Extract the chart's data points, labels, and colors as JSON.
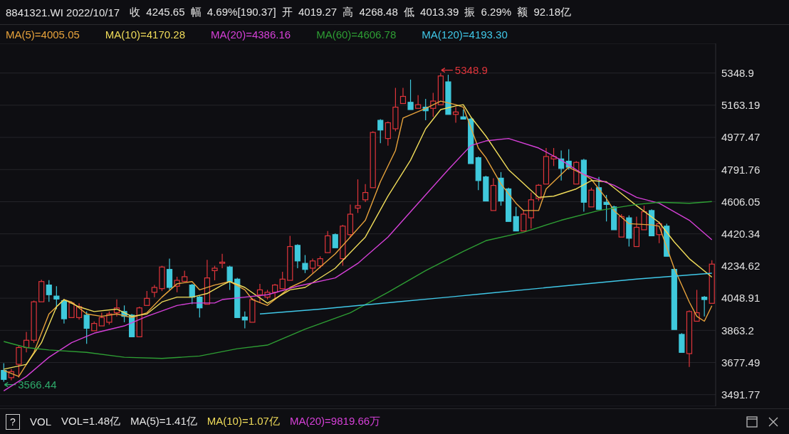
{
  "chart_data": {
    "type": "candlestick",
    "title": "8841321.WI 2022/10/17",
    "subtitle": "收 4245.65 幅 4.69%[190.37] 开 4019.27 高 4268.48 低 4013.39 振 6.29% 额 92.18亿",
    "categories": [
      null,
      null,
      null,
      null,
      null,
      null,
      null,
      null,
      null,
      null,
      null,
      null,
      null,
      null,
      null,
      null,
      null,
      null,
      null,
      null,
      null,
      null,
      null,
      null,
      null,
      null,
      null,
      null,
      null,
      null,
      null,
      null,
      null,
      null,
      null,
      null,
      null,
      null,
      null,
      null,
      null,
      null,
      null,
      null,
      null,
      null,
      null,
      null,
      null,
      null,
      null,
      null,
      null,
      null,
      null,
      null,
      null,
      null,
      null,
      null,
      null,
      null,
      null,
      null,
      null,
      null,
      null,
      null,
      null,
      null,
      null,
      null,
      null,
      null,
      null,
      null,
      null,
      null,
      null,
      null,
      null,
      null,
      null,
      null,
      null,
      null,
      null,
      null,
      null,
      null,
      null,
      null,
      null,
      null,
      null
    ],
    "ohlc": [
      [
        3632,
        3674,
        3566.44,
        3580
      ],
      [
        3590,
        3640,
        3575,
        3625
      ],
      [
        3667,
        3778,
        3590,
        3764
      ],
      [
        3764,
        3854,
        3736,
        3806
      ],
      [
        3806,
        4035,
        3792,
        4028
      ],
      [
        4028,
        4155,
        4021,
        4145
      ],
      [
        4125,
        4153,
        4028,
        4069
      ],
      [
        4061,
        4118,
        3986,
        4044
      ],
      [
        4035,
        4042,
        3903,
        3930
      ],
      [
        3937,
        4028,
        3930,
        4021
      ],
      [
        3937,
        4020,
        3925,
        4000
      ],
      [
        3951,
        3972,
        3785,
        3875
      ],
      [
        3861,
        3915,
        3861,
        3903
      ],
      [
        3889,
        3965,
        3882,
        3937
      ],
      [
        3910,
        3972,
        3896,
        3958
      ],
      [
        3965,
        4042,
        3944,
        3993
      ],
      [
        3972,
        4007,
        3910,
        3944
      ],
      [
        3951,
        3958,
        3819,
        3826
      ],
      [
        3826,
        4000,
        3819,
        3993
      ],
      [
        4007,
        4090,
        4000,
        4048
      ],
      [
        4083,
        4125,
        4055,
        4111
      ],
      [
        4104,
        4236,
        4090,
        4229
      ],
      [
        4215,
        4277,
        4097,
        4111
      ],
      [
        4118,
        4173,
        4083,
        4152
      ],
      [
        4146,
        4208,
        4139,
        4173
      ],
      [
        4125,
        4132,
        4014,
        4055
      ],
      [
        4055,
        4062,
        3937,
        3993
      ],
      [
        4014,
        4270,
        4007,
        4166
      ],
      [
        4208,
        4236,
        4152,
        4222
      ],
      [
        4250,
        4305,
        4222,
        4257
      ],
      [
        4229,
        4236,
        4097,
        4146
      ],
      [
        4159,
        4166,
        3930,
        3937
      ],
      [
        3940,
        3972,
        3875,
        3923
      ],
      [
        3910,
        4050,
        3903,
        4041
      ],
      [
        4069,
        4132,
        4021,
        4097
      ],
      [
        4055,
        4097,
        4042,
        4083
      ],
      [
        4083,
        4132,
        4042,
        4125
      ],
      [
        4104,
        4201,
        4097,
        4159
      ],
      [
        4152,
        4409,
        4145,
        4347
      ],
      [
        4354,
        4361,
        4222,
        4264
      ],
      [
        4250,
        4298,
        4194,
        4215
      ],
      [
        4222,
        4277,
        4194,
        4264
      ],
      [
        4236,
        4291,
        4222,
        4277
      ],
      [
        4312,
        4437,
        4305,
        4409
      ],
      [
        4416,
        4423,
        4333,
        4340
      ],
      [
        4277,
        4472,
        4236,
        4465
      ],
      [
        4416,
        4590,
        4402,
        4534
      ],
      [
        4569,
        4735,
        4541,
        4583
      ],
      [
        4617,
        4708,
        4604,
        4659
      ],
      [
        4687,
        5013,
        4680,
        5006
      ],
      [
        5076,
        5083,
        4944,
        5020
      ],
      [
        4971,
        5069,
        4930,
        5062
      ],
      [
        5027,
        5263,
        5013,
        5152
      ],
      [
        5173,
        5263,
        5166,
        5214
      ],
      [
        5180,
        5311,
        5131,
        5138
      ],
      [
        5145,
        5221,
        5138,
        5166
      ],
      [
        5152,
        5200,
        5076,
        5131
      ],
      [
        5145,
        5235,
        5096,
        5187
      ],
      [
        5166,
        5348.9,
        5166,
        5332
      ],
      [
        5298,
        5339,
        5110,
        5110
      ],
      [
        5110,
        5152,
        5062,
        5124
      ],
      [
        5096,
        5138,
        5076,
        5083
      ],
      [
        5083,
        5090,
        4819,
        4826
      ],
      [
        4860,
        4867,
        4673,
        4728
      ],
      [
        4749,
        4756,
        4604,
        4610
      ],
      [
        4555,
        4742,
        4548,
        4700
      ],
      [
        4742,
        4777,
        4583,
        4610
      ],
      [
        4680,
        4687,
        4485,
        4492
      ],
      [
        4520,
        4576,
        4430,
        4437
      ],
      [
        4437,
        4555,
        4430,
        4534
      ],
      [
        4513,
        4659,
        4451,
        4617
      ],
      [
        4624,
        4708,
        4610,
        4701
      ],
      [
        4708,
        4916,
        4701,
        4867
      ],
      [
        4853,
        4916,
        4812,
        4867
      ],
      [
        4853,
        4902,
        4728,
        4798
      ],
      [
        4840,
        4909,
        4791,
        4805
      ],
      [
        4708,
        4840,
        4701,
        4833
      ],
      [
        4846,
        4853,
        4548,
        4603
      ],
      [
        4576,
        4687,
        4569,
        4673
      ],
      [
        4687,
        4749,
        4555,
        4562
      ],
      [
        4603,
        4645,
        4492,
        4590
      ],
      [
        4576,
        4583,
        4437,
        4444
      ],
      [
        4402,
        4534,
        4395,
        4520
      ],
      [
        4513,
        4527,
        4347,
        4395
      ],
      [
        4347,
        4520,
        4340,
        4458
      ],
      [
        4444,
        4583,
        4437,
        4548
      ],
      [
        4555,
        4562,
        4402,
        4409
      ],
      [
        4416,
        4492,
        4367,
        4479
      ],
      [
        4465,
        4479,
        4284,
        4291
      ],
      [
        4215,
        4222,
        3861,
        3868
      ],
      [
        3840,
        3847,
        3729,
        3736
      ],
      [
        3729,
        3979,
        3652,
        3972
      ],
      [
        3916,
        4097,
        3909,
        3965
      ],
      [
        4055,
        4062,
        3944,
        4041
      ],
      [
        4019.27,
        4268.48,
        4013.39,
        4245.65
      ]
    ],
    "colors": [
      "#3fc9dc",
      "#e0353b",
      "#e0353b",
      "#e0353b",
      "#e0353b",
      "#e0353b",
      "#3fc9dc",
      "#3fc9dc",
      "#3fc9dc",
      "#e0353b",
      "#e0353b",
      "#3fc9dc",
      "#e0353b",
      "#e0353b",
      "#e0353b",
      "#e0353b",
      "#3fc9dc",
      "#3fc9dc",
      "#e0353b",
      "#e0353b",
      "#e0353b",
      "#e0353b",
      "#3fc9dc",
      "#e0353b",
      "#e0353b",
      "#3fc9dc",
      "#3fc9dc",
      "#e0353b",
      "#e0353b",
      "#e0353b",
      "#3fc9dc",
      "#3fc9dc",
      "#3fc9dc",
      "#e0353b",
      "#e0353b",
      "#e0353b",
      "#e0353b",
      "#e0353b",
      "#e0353b",
      "#3fc9dc",
      "#3fc9dc",
      "#e0353b",
      "#e0353b",
      "#e0353b",
      "#3fc9dc",
      "#e0353b",
      "#e0353b",
      "#e0353b",
      "#e0353b",
      "#e0353b",
      "#3fc9dc",
      "#e0353b",
      "#e0353b",
      "#e0353b",
      "#3fc9dc",
      "#e0353b",
      "#3fc9dc",
      "#e0353b",
      "#e0353b",
      "#3fc9dc",
      "#e0353b",
      "#3fc9dc",
      "#3fc9dc",
      "#3fc9dc",
      "#3fc9dc",
      "#e0353b",
      "#3fc9dc",
      "#3fc9dc",
      "#3fc9dc",
      "#e0353b",
      "#e0353b",
      "#e0353b",
      "#e0353b",
      "#e0353b",
      "#3fc9dc",
      "#3fc9dc",
      "#e0353b",
      "#3fc9dc",
      "#e0353b",
      "#3fc9dc",
      "#3fc9dc",
      "#3fc9dc",
      "#e0353b",
      "#3fc9dc",
      "#e0353b",
      "#e0353b",
      "#3fc9dc",
      "#e0353b",
      "#3fc9dc",
      "#3fc9dc",
      "#3fc9dc",
      "#e0353b",
      "#e0353b",
      "#3fc9dc",
      "#e0353b"
    ],
    "series": [
      {
        "name": "MA(5)=4005.05",
        "type": "line",
        "color": "#e8a33c",
        "values": [
          3632,
          null,
          3597,
          null,
          3736,
          null,
          3958,
          null,
          4041,
          4027,
          null,
          3958,
          null,
          3944,
          null,
          3958,
          null,
          3937,
          null,
          3965,
          null,
          4055,
          null,
          4132,
          null,
          4145,
          4097,
          null,
          4125,
          null,
          4145,
          null,
          4097,
          4041,
          null,
          4007,
          null,
          null,
          4111,
          null,
          4152,
          null,
          null,
          null,
          4305,
          null,
          4402,
          null,
          4499,
          null,
          4722,
          null,
          4902,
          5089,
          null,
          null,
          5145,
          null,
          5187,
          null,
          5166,
          5152,
          null,
          4916,
          4860,
          null,
          4708,
          null,
          4597,
          4555,
          null,
          4555,
          4680,
          null,
          null,
          4805,
          null,
          4763,
          4735,
          null,
          4624,
          4555,
          null,
          4479,
          null,
          null,
          4472,
          4465,
          null,
          4222,
          null,
          4027,
          3944,
          3916,
          4005.05
        ]
      },
      {
        "name": "MA(10)=4170.28",
        "type": "line",
        "color": "#f0dc5a",
        "values": [
          3639,
          null,
          null,
          3667,
          null,
          3792,
          null,
          3999,
          4041,
          null,
          3999,
          null,
          3972,
          null,
          null,
          3986,
          null,
          3944,
          null,
          3958,
          null,
          4027,
          null,
          4055,
          null,
          4055,
          null,
          4076,
          null,
          4125,
          4145,
          null,
          4111,
          null,
          null,
          4020,
          null,
          null,
          4097,
          null,
          4111,
          null,
          null,
          null,
          4222,
          null,
          null,
          null,
          4402,
          null,
          null,
          4638,
          null,
          null,
          4846,
          null,
          5027,
          null,
          5138,
          null,
          5159,
          5166,
          5096,
          null,
          4985,
          null,
          null,
          4791,
          null,
          null,
          null,
          4631,
          null,
          4638,
          null,
          null,
          4680,
          null,
          4728,
          null,
          4721,
          null,
          4652,
          null,
          4583,
          null,
          null,
          4486,
          null,
          4374,
          null,
          4277,
          null,
          null,
          4170.28
        ]
      },
      {
        "name": "MA(20)=4386.16",
        "type": "line",
        "color": "#d640d8",
        "values": [
          3514,
          null,
          null,
          3597,
          null,
          null,
          3708,
          null,
          null,
          3792,
          null,
          null,
          3847,
          null,
          null,
          null,
          3889,
          null,
          null,
          3944,
          null,
          null,
          null,
          4007,
          null,
          4021,
          null,
          null,
          4021,
          4041,
          null,
          null,
          4055,
          null,
          null,
          4069,
          null,
          null,
          null,
          4118,
          null,
          null,
          null,
          null,
          4166,
          null,
          null,
          4250,
          null,
          null,
          null,
          4402,
          null,
          null,
          null,
          4597,
          null,
          null,
          null,
          4791,
          null,
          null,
          4930,
          null,
          4957,
          null,
          null,
          4971,
          null,
          null,
          null,
          4916,
          null,
          null,
          4846,
          null,
          null,
          4763,
          null,
          null,
          null,
          4701,
          null,
          null,
          4631,
          null,
          null,
          4597,
          null,
          null,
          null,
          4499,
          null,
          null,
          4386.16
        ]
      },
      {
        "name": "MA(60)=4606.78",
        "type": "line",
        "color": "#2e9e34",
        "values": [
          3799,
          null,
          null,
          3764,
          null,
          null,
          3750,
          null,
          null,
          null,
          null,
          3736,
          null,
          null,
          null,
          null,
          3708,
          null,
          null,
          null,
          null,
          3701,
          null,
          null,
          null,
          null,
          3715,
          null,
          null,
          null,
          null,
          3757,
          null,
          null,
          null,
          3778,
          null,
          null,
          null,
          null,
          3870,
          null,
          null,
          null,
          null,
          null,
          3965,
          null,
          null,
          null,
          null,
          4083,
          null,
          null,
          null,
          null,
          4208,
          null,
          null,
          null,
          null,
          4319,
          null,
          null,
          4381,
          null,
          null,
          null,
          null,
          4430,
          null,
          null,
          null,
          null,
          4499,
          null,
          null,
          null,
          null,
          4555,
          null,
          null,
          null,
          null,
          4590,
          null,
          null,
          4603,
          null,
          null,
          null,
          4597,
          null,
          null,
          4606.78
        ]
      },
      {
        "name": "MA(120)=4193.30",
        "type": "line",
        "color": "#40c8e8",
        "values": [
          null,
          null,
          null,
          null,
          null,
          null,
          null,
          null,
          null,
          null,
          null,
          null,
          null,
          null,
          null,
          null,
          null,
          null,
          null,
          null,
          null,
          null,
          null,
          null,
          null,
          null,
          null,
          null,
          null,
          null,
          null,
          null,
          null,
          null,
          3958,
          null,
          null,
          null,
          null,
          null,
          null,
          null,
          3986,
          null,
          null,
          null,
          null,
          null,
          null,
          null,
          null,
          null,
          4027,
          null,
          null,
          null,
          null,
          null,
          null,
          4055,
          null,
          null,
          null,
          null,
          4076,
          null,
          null,
          null,
          null,
          null,
          null,
          null,
          null,
          null,
          4118,
          null,
          null,
          null,
          null,
          null,
          null,
          null,
          null,
          null,
          4159,
          null,
          null,
          null,
          null,
          null,
          null,
          null,
          null,
          null,
          4193.3
        ]
      }
    ],
    "ylim": [
      3425,
      5520
    ],
    "yticks": [
      3491.77,
      3677.49,
      3863.2,
      4048.91,
      4234.62,
      4420.34,
      4606.05,
      4791.76,
      4977.47,
      5163.19,
      5348.9
    ],
    "grid": "y",
    "legend": "top left",
    "marker": "none",
    "annotations": [
      "5348.9",
      "3566.44",
      "?",
      "VOL",
      "VOL=1.48亿",
      "MA(5)=1.41亿",
      "MA(10)=1.07亿",
      "MA(20)=9819.66万"
    ]
  }
}
